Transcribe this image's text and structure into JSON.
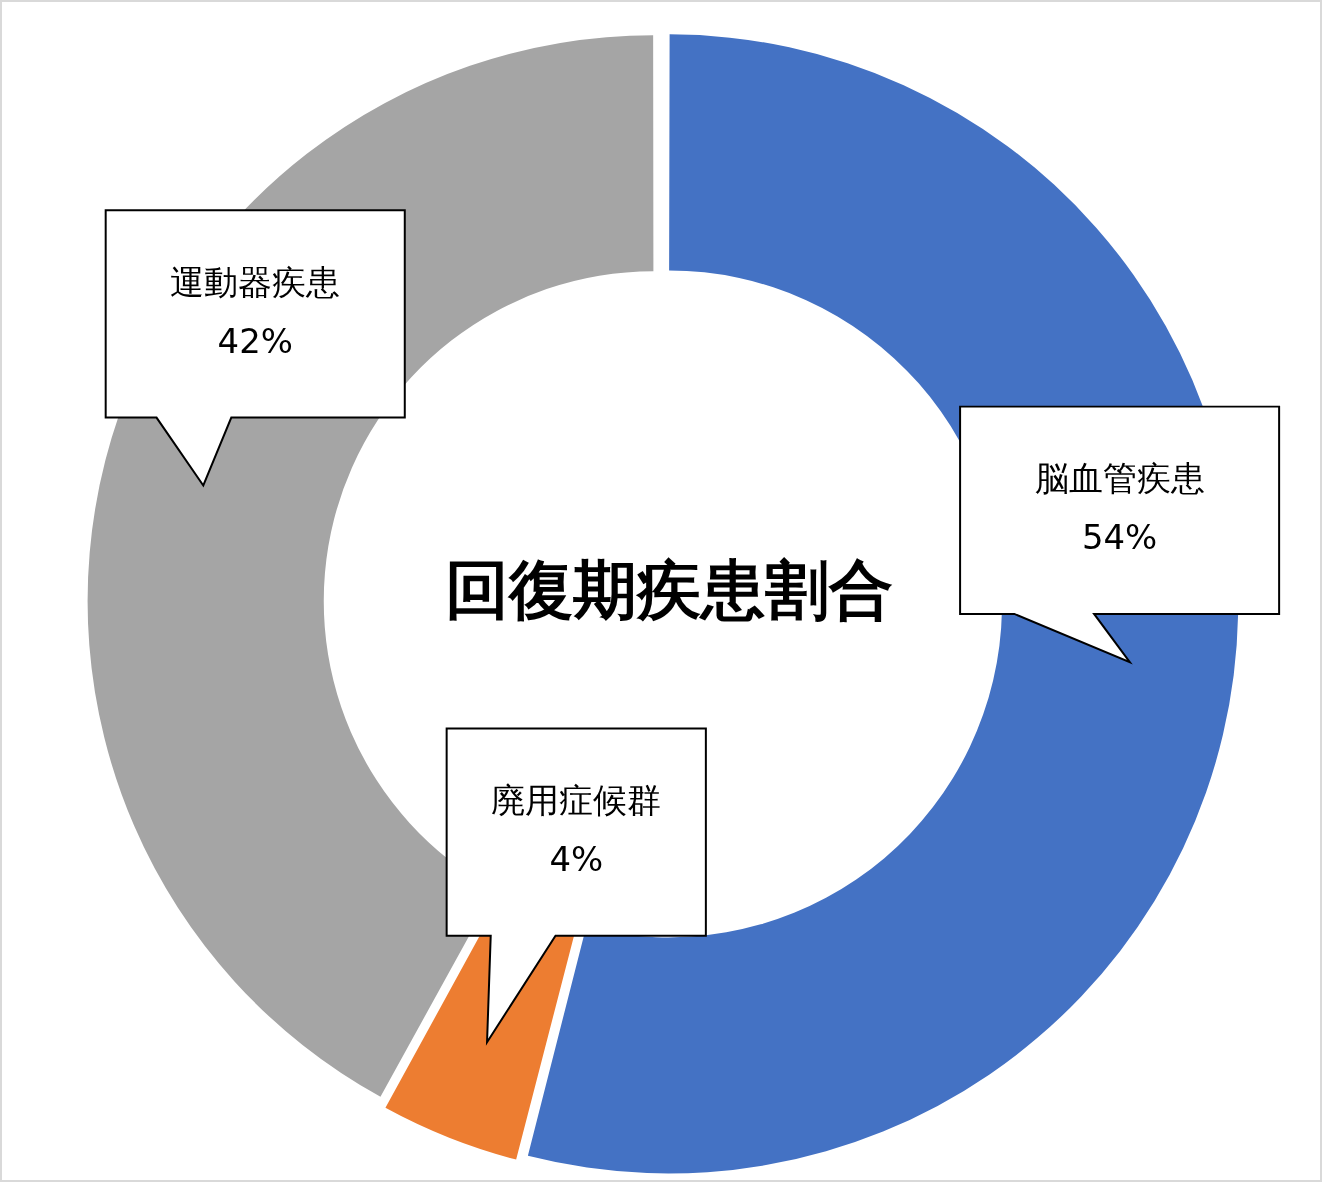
{
  "chart_data": {
    "type": "donut",
    "title": "回復期疾患割合",
    "categories": [
      "脳血管疾患",
      "廃用症候群",
      "運動器疾患"
    ],
    "values": [
      54,
      4,
      42
    ],
    "colors": [
      "#4472c4",
      "#ed7d31",
      "#a5a5a5"
    ],
    "value_labels": [
      "54%",
      "4%",
      "42%"
    ]
  }
}
